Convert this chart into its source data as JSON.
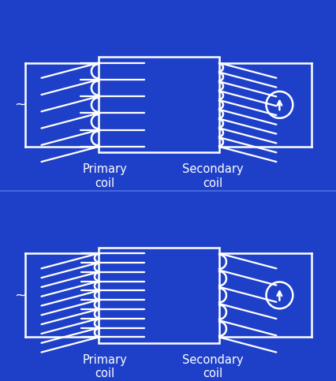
{
  "bg_color": "#1e40c8",
  "line_color": "#ffffff",
  "line_width": 1.8,
  "text_color": "#ffffff",
  "font_size": 10.5,
  "diagrams": [
    {
      "label_primary": "Primary\ncoil",
      "label_secondary": "Secondary\ncoil",
      "primary_turns": 5,
      "secondary_turns": 9
    },
    {
      "label_primary": "Primary\ncoil",
      "label_secondary": "Secondary\ncoil",
      "primary_turns": 9,
      "secondary_turns": 5
    }
  ]
}
